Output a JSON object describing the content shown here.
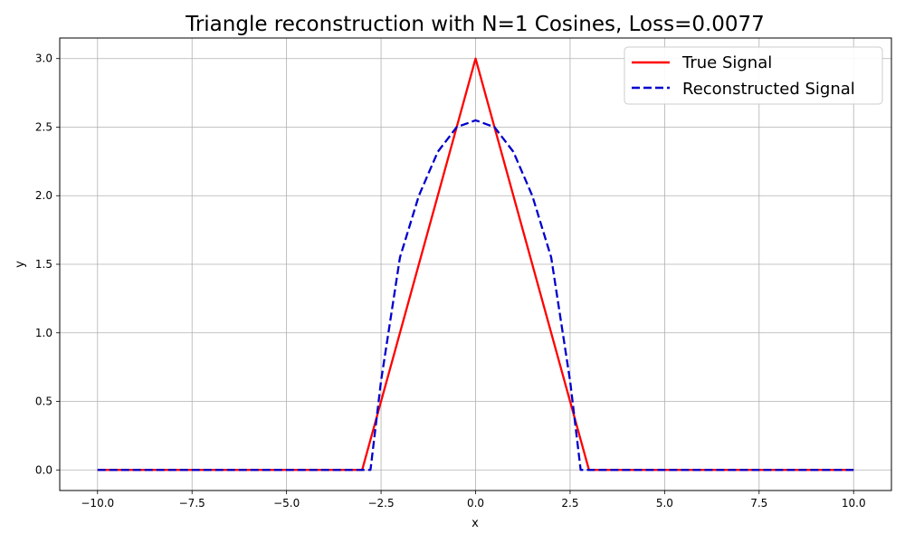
{
  "chart_data": {
    "type": "line",
    "title": "Triangle reconstruction with N=1 Cosines, Loss=0.0077",
    "xlabel": "x",
    "ylabel": "y",
    "xlim": [
      -11,
      11
    ],
    "ylim": [
      -0.15,
      3.15
    ],
    "xticks": [
      -10.0,
      -7.5,
      -5.0,
      -2.5,
      0.0,
      2.5,
      5.0,
      7.5,
      10.0
    ],
    "xtick_labels": [
      "−10.0",
      "−7.5",
      "−5.0",
      "−2.5",
      "0.0",
      "2.5",
      "5.0",
      "7.5",
      "10.0"
    ],
    "yticks": [
      0.0,
      0.5,
      1.0,
      1.5,
      2.0,
      2.5,
      3.0
    ],
    "ytick_labels": [
      "0.0",
      "0.5",
      "1.0",
      "1.5",
      "2.0",
      "2.5",
      "3.0"
    ],
    "grid": true,
    "legend_position": "top-right",
    "series": [
      {
        "name": "True Signal",
        "color": "#ff0000",
        "style": "solid",
        "x": [
          -10,
          -3,
          0,
          3,
          10
        ],
        "y": [
          0,
          0,
          3,
          0,
          0
        ]
      },
      {
        "name": "Reconstructed Signal",
        "color": "#0000cc",
        "style": "dashed",
        "x": [
          -10,
          -2.78,
          -2.5,
          -2.0,
          -1.5,
          -1.0,
          -0.5,
          0.0,
          0.5,
          1.0,
          1.5,
          2.0,
          2.5,
          2.78,
          10
        ],
        "y": [
          0,
          0,
          0.65,
          1.55,
          2.0,
          2.32,
          2.5,
          2.55,
          2.5,
          2.32,
          2.0,
          1.55,
          0.65,
          0,
          0
        ]
      }
    ]
  }
}
